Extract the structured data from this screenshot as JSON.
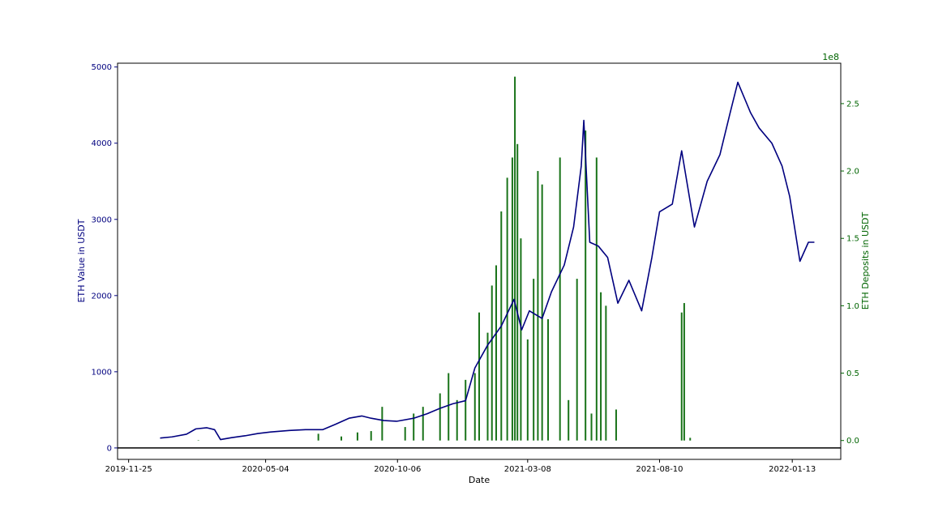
{
  "chart_data": {
    "type": "line",
    "xlabel": "Date",
    "x_tick_labels": [
      "2019-11-25",
      "2020-05-04",
      "2020-10-06",
      "2021-03-08",
      "2021-08-10",
      "2022-01-13"
    ],
    "x_range": [
      "2019-11-12",
      "2022-03-11"
    ],
    "left_axis": {
      "label": "ETH Value in USDT",
      "color": "#00007f",
      "ylim": [
        -150,
        5050
      ],
      "tick_labels": [
        "0",
        "1000",
        "2000",
        "3000",
        "4000",
        "5000"
      ]
    },
    "right_axis": {
      "label": "ETH Deposits in USDT",
      "color": "#006400",
      "multiplier": "1e8",
      "ylim": [
        -0.14,
        2.8
      ],
      "tick_labels": [
        "0.0",
        "0.5",
        "1.0",
        "1.5",
        "2.0",
        "2.5"
      ]
    },
    "zero_line_color": "#000000",
    "series": [
      {
        "axis": "left",
        "style": "line",
        "color": "#00007f",
        "points": [
          [
            "2020-01-01",
            130
          ],
          [
            "2020-01-15",
            145
          ],
          [
            "2020-02-01",
            180
          ],
          [
            "2020-02-12",
            250
          ],
          [
            "2020-02-25",
            265
          ],
          [
            "2020-03-05",
            240
          ],
          [
            "2020-03-12",
            110
          ],
          [
            "2020-03-25",
            135
          ],
          [
            "2020-04-10",
            160
          ],
          [
            "2020-04-25",
            190
          ],
          [
            "2020-05-10",
            210
          ],
          [
            "2020-06-01",
            230
          ],
          [
            "2020-06-20",
            240
          ],
          [
            "2020-07-10",
            240
          ],
          [
            "2020-07-25",
            310
          ],
          [
            "2020-08-10",
            390
          ],
          [
            "2020-08-25",
            420
          ],
          [
            "2020-09-05",
            390
          ],
          [
            "2020-09-20",
            360
          ],
          [
            "2020-10-05",
            350
          ],
          [
            "2020-10-25",
            390
          ],
          [
            "2020-11-10",
            450
          ],
          [
            "2020-11-25",
            520
          ],
          [
            "2020-12-10",
            580
          ],
          [
            "2020-12-25",
            620
          ],
          [
            "2021-01-05",
            1050
          ],
          [
            "2021-01-20",
            1350
          ],
          [
            "2021-02-05",
            1600
          ],
          [
            "2021-02-20",
            1950
          ],
          [
            "2021-03-01",
            1550
          ],
          [
            "2021-03-10",
            1800
          ],
          [
            "2021-03-25",
            1700
          ],
          [
            "2021-04-05",
            2050
          ],
          [
            "2021-04-20",
            2400
          ],
          [
            "2021-05-01",
            2900
          ],
          [
            "2021-05-10",
            3700
          ],
          [
            "2021-05-13",
            4300
          ],
          [
            "2021-05-20",
            2700
          ],
          [
            "2021-05-30",
            2650
          ],
          [
            "2021-06-10",
            2500
          ],
          [
            "2021-06-22",
            1900
          ],
          [
            "2021-07-05",
            2200
          ],
          [
            "2021-07-20",
            1800
          ],
          [
            "2021-08-01",
            2500
          ],
          [
            "2021-08-10",
            3100
          ],
          [
            "2021-08-25",
            3200
          ],
          [
            "2021-09-05",
            3900
          ],
          [
            "2021-09-20",
            2900
          ],
          [
            "2021-10-05",
            3500
          ],
          [
            "2021-10-20",
            3850
          ],
          [
            "2021-11-01",
            4400
          ],
          [
            "2021-11-10",
            4800
          ],
          [
            "2021-11-25",
            4400
          ],
          [
            "2021-12-05",
            4200
          ],
          [
            "2021-12-20",
            4000
          ],
          [
            "2022-01-01",
            3700
          ],
          [
            "2022-01-10",
            3300
          ],
          [
            "2022-01-22",
            2450
          ],
          [
            "2022-02-01",
            2700
          ],
          [
            "2022-02-08",
            2700
          ]
        ]
      },
      {
        "axis": "right",
        "style": "bar",
        "color": "#006400",
        "points": [
          [
            "2020-02-15",
            0.003
          ],
          [
            "2020-07-05",
            0.05
          ],
          [
            "2020-08-01",
            0.03
          ],
          [
            "2020-08-20",
            0.06
          ],
          [
            "2020-09-05",
            0.07
          ],
          [
            "2020-09-18",
            0.25
          ],
          [
            "2020-10-15",
            0.1
          ],
          [
            "2020-10-25",
            0.2
          ],
          [
            "2020-11-05",
            0.25
          ],
          [
            "2020-11-25",
            0.35
          ],
          [
            "2020-12-05",
            0.5
          ],
          [
            "2020-12-15",
            0.3
          ],
          [
            "2020-12-25",
            0.45
          ],
          [
            "2021-01-05",
            0.5
          ],
          [
            "2021-01-10",
            0.95
          ],
          [
            "2021-01-20",
            0.8
          ],
          [
            "2021-01-25",
            1.15
          ],
          [
            "2021-01-30",
            1.3
          ],
          [
            "2021-02-05",
            1.7
          ],
          [
            "2021-02-12",
            1.95
          ],
          [
            "2021-02-18",
            2.1
          ],
          [
            "2021-02-21",
            2.7
          ],
          [
            "2021-02-24",
            2.2
          ],
          [
            "2021-02-28",
            1.5
          ],
          [
            "2021-03-08",
            0.75
          ],
          [
            "2021-03-15",
            1.2
          ],
          [
            "2021-03-20",
            2.0
          ],
          [
            "2021-03-25",
            1.9
          ],
          [
            "2021-04-01",
            0.9
          ],
          [
            "2021-04-15",
            2.1
          ],
          [
            "2021-04-25",
            0.3
          ],
          [
            "2021-05-05",
            1.2
          ],
          [
            "2021-05-15",
            2.3
          ],
          [
            "2021-05-22",
            0.2
          ],
          [
            "2021-05-28",
            2.1
          ],
          [
            "2021-06-02",
            1.1
          ],
          [
            "2021-06-08",
            1.0
          ],
          [
            "2021-06-20",
            0.23
          ],
          [
            "2021-09-05",
            0.95
          ],
          [
            "2021-09-08",
            1.02
          ],
          [
            "2021-09-15",
            0.02
          ]
        ]
      }
    ]
  }
}
